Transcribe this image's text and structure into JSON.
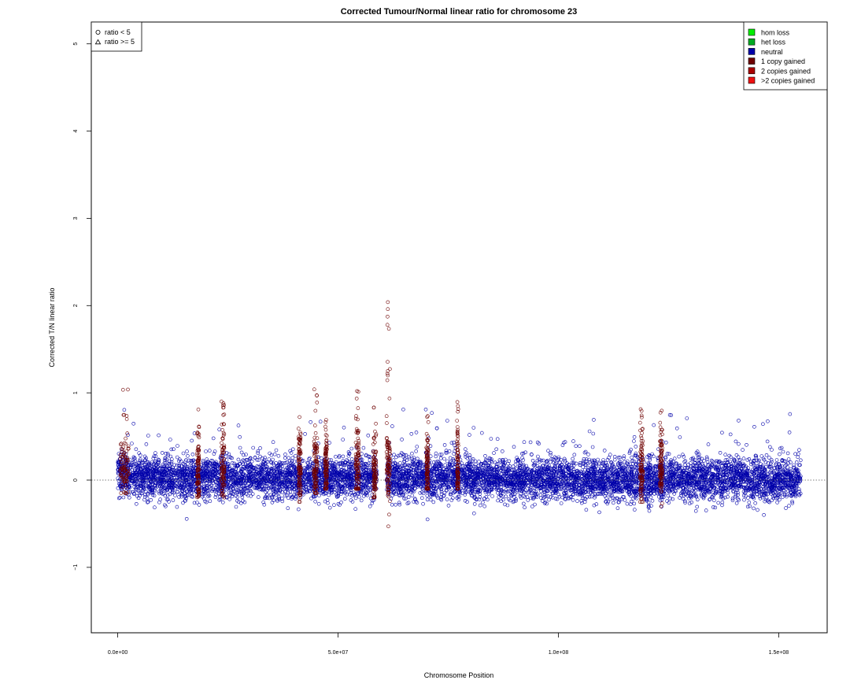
{
  "chart_data": {
    "type": "scatter",
    "title": "Corrected Tumour/Normal linear ratio for chromosome  23",
    "xlabel": "Chromosome Position",
    "ylabel": "Corrected T/N linear ratio",
    "xlim": [
      -6000000,
      161000000
    ],
    "ylim": [
      -1.75,
      5.25
    ],
    "x_ticks": [
      {
        "value": 0,
        "label": "0.0e+00"
      },
      {
        "value": 50000000,
        "label": "5.0e+07"
      },
      {
        "value": 100000000,
        "label": "1.0e+08"
      },
      {
        "value": 150000000,
        "label": "1.5e+08"
      }
    ],
    "y_ticks": [
      {
        "value": -1,
        "label": "−1"
      },
      {
        "value": 0,
        "label": "0"
      },
      {
        "value": 1,
        "label": "1"
      },
      {
        "value": 2,
        "label": "2"
      },
      {
        "value": 3,
        "label": "3"
      },
      {
        "value": 4,
        "label": "4"
      },
      {
        "value": 5,
        "label": "5"
      }
    ],
    "reference_line": {
      "y": 0,
      "style": "dotted"
    },
    "shape_legend": {
      "position": "top-left",
      "entries": [
        {
          "label": "ratio < 5",
          "shape": "circle"
        },
        {
          "label": "ratio >= 5",
          "shape": "triangle"
        }
      ]
    },
    "state_legend": {
      "position": "top-right",
      "entries": [
        {
          "label": "hom loss",
          "color": "#00ee00"
        },
        {
          "label": "het loss",
          "color": "#00aa22"
        },
        {
          "label": "neutral",
          "color": "#0000aa"
        },
        {
          "label": "1 copy gained",
          "color": "#6e0000"
        },
        {
          "label": "2 copies gained",
          "color": "#aa0000"
        },
        {
          "label": ">2 copies gained",
          "color": "#ee1111"
        }
      ]
    },
    "series": [
      {
        "name": "neutral",
        "color": "#0000aa",
        "x": [
          0,
          1000000,
          2000000,
          5000000,
          10000000,
          15000000,
          20000000,
          25000000,
          30000000,
          35000000,
          40000000,
          45000000,
          50000000,
          55000000,
          58000000,
          61000000,
          65000000,
          70000000,
          75000000,
          80000000,
          85000000,
          90000000,
          95000000,
          100000000,
          105000000,
          110000000,
          115000000,
          120000000,
          125000000,
          130000000,
          135000000,
          140000000,
          145000000,
          150000000,
          155000000
        ],
        "y_mean": [
          0.05,
          0.08,
          0.05,
          0.03,
          0.02,
          0.02,
          0.02,
          0.02,
          0.02,
          0.01,
          0.02,
          0.03,
          0.02,
          0.02,
          0.0,
          0.02,
          0.03,
          0.02,
          0.02,
          0.02,
          0.02,
          0.01,
          0.0,
          0.0,
          0.0,
          0.0,
          0.0,
          0.0,
          0.01,
          0.02,
          0.02,
          0.02,
          0.01,
          0.0,
          0.0
        ],
        "y_min": [
          -0.35,
          -0.35,
          -0.4,
          -0.45,
          -0.4,
          -0.45,
          -0.45,
          -0.4,
          -0.45,
          -0.45,
          -0.4,
          -0.45,
          -0.45,
          -0.3,
          -0.3,
          -0.5,
          -0.45,
          -0.45,
          -0.45,
          -0.45,
          -0.45,
          -0.5,
          -0.5,
          -0.5,
          -0.5,
          -0.5,
          -0.5,
          -0.5,
          -0.5,
          -0.45,
          -0.45,
          -0.45,
          -0.5,
          -0.55,
          -0.5
        ],
        "y_max": [
          1.2,
          0.9,
          0.7,
          0.6,
          0.55,
          0.75,
          0.7,
          0.65,
          0.6,
          0.6,
          0.8,
          0.85,
          0.9,
          0.9,
          0.6,
          1.0,
          0.8,
          0.9,
          0.8,
          0.6,
          0.6,
          0.65,
          0.65,
          0.7,
          0.7,
          0.7,
          0.9,
          0.8,
          0.75,
          0.7,
          0.7,
          0.7,
          0.6,
          0.75,
          0.88
        ]
      },
      {
        "name": "1 copy gained",
        "color": "#6e0000",
        "regions": [
          {
            "x_start": 500000,
            "x_end": 2500000,
            "y_min": -0.15,
            "y_max": 1.1
          },
          {
            "x_start": 18000000,
            "x_end": 18500000,
            "y_min": -0.35,
            "y_max": 0.85
          },
          {
            "x_start": 23500000,
            "x_end": 24200000,
            "y_min": -0.2,
            "y_max": 0.92
          },
          {
            "x_start": 41000000,
            "x_end": 41600000,
            "y_min": -0.25,
            "y_max": 0.75
          },
          {
            "x_start": 44500000,
            "x_end": 45300000,
            "y_min": -0.15,
            "y_max": 1.04
          },
          {
            "x_start": 47000000,
            "x_end": 47500000,
            "y_min": -0.1,
            "y_max": 0.7
          },
          {
            "x_start": 54000000,
            "x_end": 54800000,
            "y_min": -0.1,
            "y_max": 1.02
          },
          {
            "x_start": 58000000,
            "x_end": 58700000,
            "y_min": -0.2,
            "y_max": 0.85
          },
          {
            "x_start": 61000000,
            "x_end": 61800000,
            "y_min": -0.55,
            "y_max": 2.05
          },
          {
            "x_start": 70000000,
            "x_end": 70500000,
            "y_min": -0.1,
            "y_max": 0.8
          },
          {
            "x_start": 77000000,
            "x_end": 77300000,
            "y_min": -0.1,
            "y_max": 0.9
          },
          {
            "x_start": 118500000,
            "x_end": 119200000,
            "y_min": -0.25,
            "y_max": 0.9
          },
          {
            "x_start": 123000000,
            "x_end": 123600000,
            "y_min": -0.3,
            "y_max": 0.85
          }
        ],
        "points": [
          {
            "x": 61300000,
            "y": 2.04
          },
          {
            "x": 61300000,
            "y": 1.96
          },
          {
            "x": 61200000,
            "y": 1.78
          },
          {
            "x": 61300000,
            "y": 1.25
          },
          {
            "x": 61200000,
            "y": 1.22
          },
          {
            "x": 61300000,
            "y": 1.2
          },
          {
            "x": 44600000,
            "y": 1.04
          },
          {
            "x": 54300000,
            "y": 1.02
          },
          {
            "x": 61400000,
            "y": -0.53
          }
        ]
      }
    ]
  }
}
